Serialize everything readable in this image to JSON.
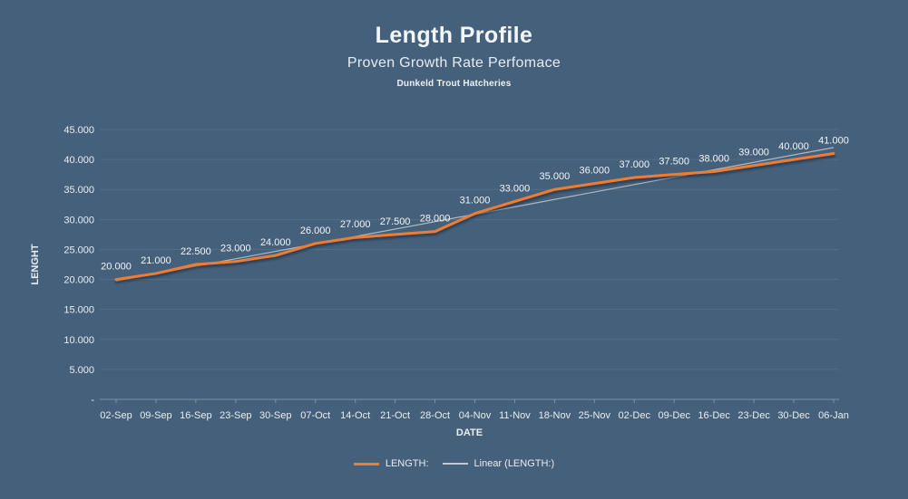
{
  "header": {
    "title": "Length Profile",
    "subtitle": "Proven Growth Rate Perfomace",
    "subsubtitle": "Dunkeld Trout Hatcheries"
  },
  "chart_data": {
    "type": "line",
    "title": "Length Profile",
    "subtitle": "Proven Growth Rate Perfomace",
    "annotation": "Dunkeld Trout Hatcheries",
    "categories": [
      "02-Sep",
      "09-Sep",
      "16-Sep",
      "23-Sep",
      "30-Sep",
      "07-Oct",
      "14-Oct",
      "21-Oct",
      "28-Oct",
      "04-Nov",
      "11-Nov",
      "18-Nov",
      "25-Nov",
      "02-Dec",
      "09-Dec",
      "16-Dec",
      "23-Dec",
      "30-Dec",
      "06-Jan"
    ],
    "series": [
      {
        "name": "LENGTH:",
        "type": "line",
        "color": "#ED7D31",
        "values": [
          20000,
          21000,
          22500,
          23000,
          24000,
          26000,
          27000,
          27500,
          28000,
          31000,
          33000,
          35000,
          36000,
          37000,
          37500,
          38000,
          39000,
          40000,
          41000
        ],
        "data_labels": [
          "20.000",
          "21.000",
          "22.500",
          "23.000",
          "24.000",
          "26.000",
          "27.000",
          "27.500",
          "28.000",
          "31.000",
          "33.000",
          "35.000",
          "36.000",
          "37.000",
          "37.500",
          "38.000",
          "39.000",
          "40.000",
          "41.000"
        ]
      },
      {
        "name": "Linear (LENGTH:)",
        "type": "linear-trendline",
        "color": "#C3C9D0"
      }
    ],
    "xlabel": "DATE",
    "ylabel": "LENGHT",
    "ylim": [
      0,
      45000
    ],
    "ytick_step": 5000,
    "ytick_labels": [
      "-",
      "5.000",
      "10.000",
      "15.000",
      "20.000",
      "25.000",
      "30.000",
      "35.000",
      "40.000",
      "45.000"
    ],
    "grid": "horizontal",
    "legend_position": "bottom"
  },
  "legend": {
    "items": [
      {
        "label": "LENGTH:",
        "color": "#ED7D31"
      },
      {
        "label": "Linear (LENGTH:)",
        "color": "#C3C9D0"
      }
    ]
  },
  "colors": {
    "background": "#45607A",
    "text": "#E9EEF3",
    "data_label_text": "#F3F6F9",
    "grid": "#5E7890",
    "axis": "#8FA2B5",
    "series_orange": "#ED7D31",
    "trendline_gray": "#C3C9D0",
    "line_shadow": "#141F2D"
  }
}
